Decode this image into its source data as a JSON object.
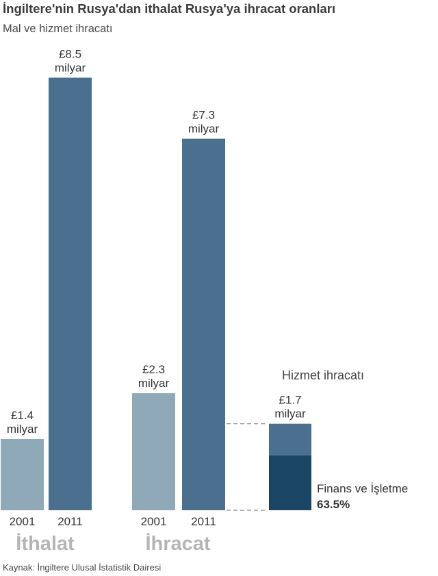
{
  "title": "İngiltere'nin Rusya'dan ithalat Rusya'ya ihracat oranları",
  "subtitle": "Mal ve hizmet ihracatı",
  "source": "Kaynak: İngiltere Ulusal İstatistik Dairesi",
  "colors": {
    "bar_2001": "#8fa9b8",
    "bar_2011": "#4a6f8f",
    "finance_segment": "#1b4565",
    "group_label": "#b5b5b5",
    "dashed_line": "#888888"
  },
  "chart_data": {
    "type": "bar",
    "unit_prefix": "£",
    "value_unit": "milyar",
    "groups": [
      {
        "label": "İthalat",
        "bars": [
          {
            "year": "2001",
            "value": 1.4,
            "value_label": "£1.4",
            "unit_label": "milyar"
          },
          {
            "year": "2011",
            "value": 8.5,
            "value_label": "£8.5",
            "unit_label": "milyar"
          }
        ]
      },
      {
        "label": "İhracat",
        "bars": [
          {
            "year": "2001",
            "value": 2.3,
            "value_label": "£2.3",
            "unit_label": "milyar"
          },
          {
            "year": "2011",
            "value": 7.3,
            "value_label": "£7.3",
            "unit_label": "milyar"
          }
        ]
      }
    ],
    "breakdown": {
      "title": "Hizmet ihracatı",
      "total": 1.7,
      "value_label": "£1.7",
      "unit_label": "milyar",
      "segment": {
        "label": "Finans ve İşletme",
        "percent_label": "63.5%",
        "share": 0.635
      }
    }
  }
}
